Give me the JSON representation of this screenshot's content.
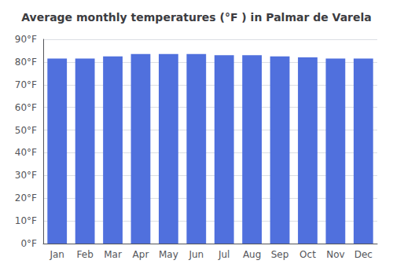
{
  "chart_data": {
    "type": "bar",
    "title": "Average monthly temperatures (°F ) in Palmar de Varela",
    "categories": [
      "Jan",
      "Feb",
      "Mar",
      "Apr",
      "May",
      "Jun",
      "Jul",
      "Aug",
      "Sep",
      "Oct",
      "Nov",
      "Dec"
    ],
    "values": [
      81.5,
      81.5,
      82.5,
      83.5,
      83.5,
      83.5,
      83.0,
      83.0,
      82.5,
      82.0,
      81.5,
      81.5
    ],
    "ylim": [
      0,
      90
    ],
    "yticks": [
      {
        "value": 0,
        "label": "0°F"
      },
      {
        "value": 10,
        "label": "10°F"
      },
      {
        "value": 20,
        "label": "20°F"
      },
      {
        "value": 30,
        "label": "30°F"
      },
      {
        "value": 40,
        "label": "40°F"
      },
      {
        "value": 50,
        "label": "50°F"
      },
      {
        "value": 60,
        "label": "60°F"
      },
      {
        "value": 70,
        "label": "70°F"
      },
      {
        "value": 80,
        "label": "80°F"
      },
      {
        "value": 90,
        "label": "90°F"
      }
    ],
    "grid": true
  }
}
